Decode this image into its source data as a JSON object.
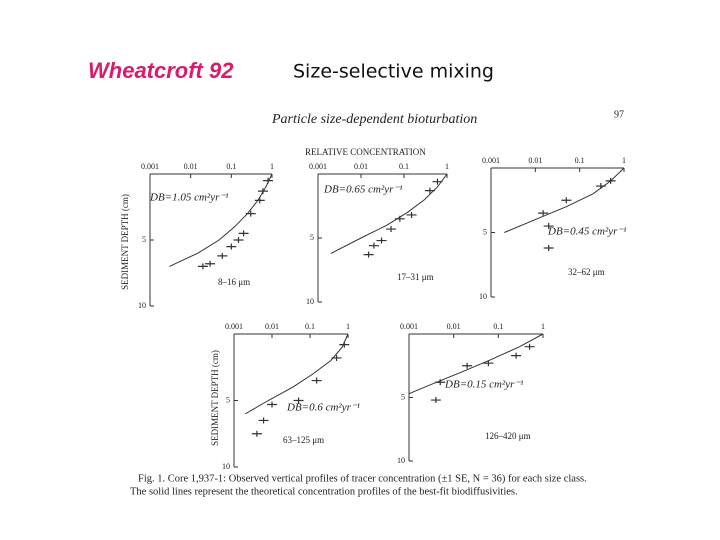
{
  "header": {
    "author": "Wheatcroft 92",
    "title": "Size-selective mixing"
  },
  "figure": {
    "title": "Particle size-dependent bioturbation",
    "page": "97",
    "x_label": "RELATIVE CONCENTRATION",
    "y_label": "SEDIMENT DEPTH (cm)",
    "caption": [
      "Fig. 1.   Core 1,937-1: Observed vertical profiles of tracer concentration (±1 SE, N = 36) for each size class.",
      "The solid lines represent the theoretical concentration profiles of the best-fit biodiffusivities."
    ]
  },
  "chart_data": [
    {
      "type": "scatter",
      "log_x": true,
      "y_inverted": true,
      "xlim": [
        0.001,
        1
      ],
      "ylim": [
        0,
        10
      ],
      "xticks": [
        0.001,
        0.01,
        0.1,
        1
      ],
      "yticks": [
        5,
        10
      ],
      "annotation": "DB=1.05  cm²yr⁻¹",
      "label": "8–16 μm",
      "points": {
        "x": [
          0.8,
          0.6,
          0.5,
          0.3,
          0.2,
          0.15,
          0.1,
          0.06,
          0.03,
          0.02
        ],
        "y": [
          0.5,
          1.3,
          2.0,
          3.0,
          4.5,
          5.0,
          5.5,
          6.2,
          6.8,
          7.0
        ]
      },
      "curve": {
        "x": [
          1,
          0.7,
          0.45,
          0.25,
          0.12,
          0.05,
          0.015,
          0.003
        ],
        "y": [
          0,
          1,
          2,
          3,
          4,
          5,
          6,
          7
        ]
      }
    },
    {
      "type": "scatter",
      "log_x": true,
      "y_inverted": true,
      "xlim": [
        0.001,
        1
      ],
      "ylim": [
        0,
        10
      ],
      "xticks": [
        0.001,
        0.01,
        0.1,
        1
      ],
      "yticks": [
        5,
        10
      ],
      "annotation": "DB=0.65  cm²yr⁻¹",
      "label": "17–31 μm",
      "points": {
        "x": [
          0.6,
          0.4,
          0.15,
          0.08,
          0.05,
          0.03,
          0.02,
          0.015
        ],
        "y": [
          0.6,
          1.3,
          3.2,
          3.5,
          4.3,
          5.2,
          5.6,
          6.3
        ]
      },
      "curve": {
        "x": [
          1,
          0.6,
          0.3,
          0.12,
          0.04,
          0.01,
          0.002
        ],
        "y": [
          0,
          1,
          2,
          3,
          4,
          5,
          6.2
        ]
      }
    },
    {
      "type": "scatter",
      "log_x": true,
      "y_inverted": true,
      "xlim": [
        0.001,
        1
      ],
      "ylim": [
        0,
        10
      ],
      "xticks": [
        0.001,
        0.01,
        0.1,
        1
      ],
      "yticks": [
        5,
        10
      ],
      "annotation": "DB=0.45  cm²yr⁻¹",
      "label": "32–62 μm",
      "points": {
        "x": [
          0.5,
          0.3,
          0.05,
          0.015,
          0.02,
          0.02
        ],
        "y": [
          1.0,
          1.4,
          2.5,
          3.5,
          4.5,
          6.2
        ]
      },
      "curve": {
        "x": [
          1,
          0.5,
          0.2,
          0.05,
          0.01,
          0.002
        ],
        "y": [
          0,
          1,
          2,
          3,
          4,
          5
        ]
      }
    },
    {
      "type": "scatter",
      "log_x": true,
      "y_inverted": true,
      "xlim": [
        0.001,
        1
      ],
      "ylim": [
        0,
        10
      ],
      "xticks": [
        0.001,
        0.01,
        0.1,
        1
      ],
      "yticks": [
        5,
        10
      ],
      "annotation": "DB=0.6  cm²yr⁻¹",
      "label": "63–125 μm",
      "points": {
        "x": [
          0.8,
          0.5,
          0.15,
          0.05,
          0.01,
          0.006,
          0.004
        ],
        "y": [
          0.8,
          1.8,
          3.5,
          5.0,
          5.3,
          6.5,
          7.5
        ]
      },
      "curve": {
        "x": [
          1,
          0.7,
          0.35,
          0.12,
          0.035,
          0.008,
          0.002
        ],
        "y": [
          0,
          1,
          2,
          3,
          4,
          5,
          6
        ]
      }
    },
    {
      "type": "scatter",
      "log_x": true,
      "y_inverted": true,
      "xlim": [
        0.001,
        1
      ],
      "ylim": [
        0,
        10
      ],
      "xticks": [
        0.001,
        0.01,
        0.1,
        1
      ],
      "yticks": [
        5,
        10
      ],
      "annotation": "DB=0.15  cm²yr⁻¹",
      "label": "126–420 μm",
      "points": {
        "x": [
          0.5,
          0.25,
          0.06,
          0.02,
          0.005,
          0.004
        ],
        "y": [
          1.0,
          1.7,
          2.3,
          2.5,
          3.8,
          5.2
        ]
      },
      "curve": {
        "x": [
          1,
          0.3,
          0.07,
          0.015,
          0.003,
          0.001
        ],
        "y": [
          0,
          1,
          2,
          3,
          4,
          4.7
        ]
      }
    }
  ]
}
